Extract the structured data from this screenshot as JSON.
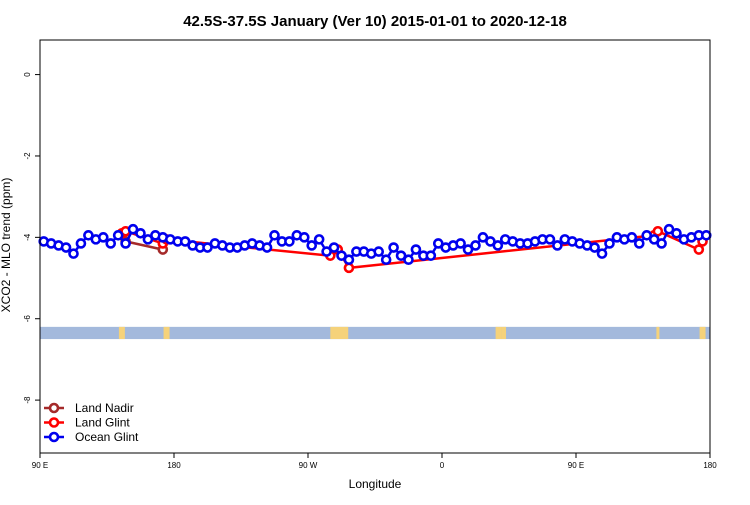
{
  "chart_data": {
    "type": "line",
    "title": "42.5S-37.5S January (Ver 10)   2015-01-01 to 2020-12-18",
    "xlabel": "Longitude",
    "ylabel": "XCO2 - MLO trend (ppm)",
    "xlim": [
      90,
      540
    ],
    "ylim": [
      -9.3,
      0.85
    ],
    "x_ticks": [
      {
        "value": 90,
        "label": "90 E"
      },
      {
        "value": 180,
        "label": "180"
      },
      {
        "value": 270,
        "label": "90 W"
      },
      {
        "value": 360,
        "label": "0"
      },
      {
        "value": 450,
        "label": "90 E"
      },
      {
        "value": 540,
        "label": "180"
      }
    ],
    "y_ticks": [
      {
        "value": 0,
        "label": "0"
      },
      {
        "value": -2,
        "label": "-2"
      },
      {
        "value": -4,
        "label": "-4"
      },
      {
        "value": -6,
        "label": "-6"
      },
      {
        "value": -8,
        "label": "-8"
      }
    ],
    "grid": false,
    "legend_position": "bottom-left",
    "colors": {
      "land_nadir": "#a52a2a",
      "land_glint": "#ff0000",
      "ocean_glint": "#0000ee",
      "land_mask": "#f5d27a",
      "ocean_mask": "#a3b9dc"
    },
    "surface_band": {
      "y_top": -6.2,
      "y_bottom": -6.5,
      "land_ranges": [
        [
          143,
          147
        ],
        [
          173,
          177
        ],
        [
          285,
          297
        ],
        [
          400,
          403
        ],
        [
          396,
          400
        ],
        [
          504,
          506
        ],
        [
          533,
          537
        ]
      ]
    },
    "series": [
      {
        "name": "Land Nadir",
        "key": "land_nadir",
        "x": [
          147.5,
          172.5
        ],
        "y": [
          -4.1,
          -4.3
        ]
      },
      {
        "name": "Land Glint",
        "key": "land_glint",
        "x": [
          145,
          147.5,
          172.5,
          175,
          285,
          290,
          297.5,
          502.5,
          505,
          532.5,
          535
        ],
        "y": [
          -3.9,
          -3.85,
          -4.15,
          -4.05,
          -4.45,
          -4.3,
          -4.75,
          -3.95,
          -3.85,
          -4.3,
          -4.1
        ]
      },
      {
        "name": "Ocean Glint",
        "key": "ocean_glint",
        "x": [
          92.5,
          97.5,
          102.5,
          107.5,
          112.5,
          117.5,
          122.5,
          127.5,
          132.5,
          137.5,
          142.5,
          147.5,
          152.5,
          157.5,
          162.5,
          167.5,
          172.5,
          177.5,
          182.5,
          187.5,
          192.5,
          197.5,
          202.5,
          207.5,
          212.5,
          217.5,
          222.5,
          227.5,
          232.5,
          237.5,
          242.5,
          247.5,
          252.5,
          257.5,
          262.5,
          267.5,
          272.5,
          277.5,
          282.5,
          287.5,
          292.5,
          297.5,
          302.5,
          307.5,
          312.5,
          317.5,
          322.5,
          327.5,
          332.5,
          337.5,
          342.5,
          347.5,
          352.5,
          357.5,
          362.5,
          367.5,
          372.5,
          377.5,
          382.5,
          387.5,
          392.5,
          397.5,
          402.5,
          407.5,
          412.5,
          417.5,
          422.5,
          427.5,
          432.5,
          437.5,
          442.5,
          447.5,
          452.5,
          457.5,
          462.5,
          467.5,
          472.5,
          477.5,
          482.5,
          487.5,
          492.5,
          497.5,
          502.5,
          507.5,
          512.5,
          517.5,
          522.5,
          527.5,
          532.5,
          537.5
        ],
        "y": [
          -4.1,
          -4.15,
          -4.2,
          -4.25,
          -4.4,
          -4.15,
          -3.95,
          -4.05,
          -4.0,
          -4.15,
          -3.95,
          -4.15,
          -3.8,
          -3.9,
          -4.05,
          -3.95,
          -4.0,
          -4.05,
          -4.1,
          -4.1,
          -4.2,
          -4.25,
          -4.25,
          -4.15,
          -4.2,
          -4.25,
          -4.25,
          -4.2,
          -4.15,
          -4.2,
          -4.25,
          -3.95,
          -4.1,
          -4.1,
          -3.95,
          -4.0,
          -4.2,
          -4.05,
          -4.35,
          -4.25,
          -4.45,
          -4.55,
          -4.35,
          -4.35,
          -4.4,
          -4.35,
          -4.55,
          -4.25,
          -4.45,
          -4.55,
          -4.3,
          -4.45,
          -4.45,
          -4.15,
          -4.25,
          -4.2,
          -4.15,
          -4.3,
          -4.2,
          -4.0,
          -4.1,
          -4.2,
          -4.05,
          -4.1,
          -4.15,
          -4.15,
          -4.1,
          -4.05,
          -4.05,
          -4.2,
          -4.05,
          -4.1,
          -4.15,
          -4.2,
          -4.25,
          -4.4,
          -4.15,
          -4.0,
          -4.05,
          -4.0,
          -4.15,
          -3.95,
          -4.05,
          -4.15,
          -3.8,
          -3.9,
          -4.05,
          -4.0,
          -3.95,
          -3.95
        ]
      }
    ]
  }
}
